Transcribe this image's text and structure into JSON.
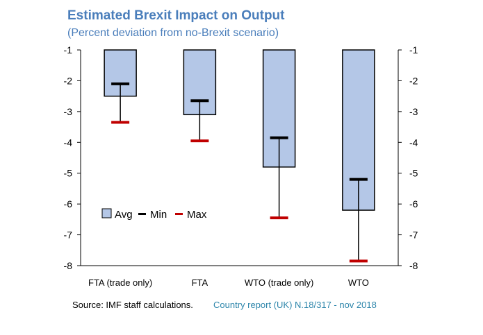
{
  "chart_data": {
    "type": "bar",
    "title": "Estimated Brexit Impact on Output",
    "subtitle": "(Percent deviation from no-Brexit scenario)",
    "categories": [
      "FTA (trade only)",
      "FTA",
      "WTO (trade only)",
      "WTO"
    ],
    "series": [
      {
        "name": "Avg",
        "kind": "bar",
        "values": [
          -2.5,
          -3.1,
          -4.8,
          -6.2
        ]
      },
      {
        "name": "Min",
        "kind": "marker",
        "values": [
          -2.1,
          -2.65,
          -3.85,
          -5.2
        ]
      },
      {
        "name": "Max",
        "kind": "marker",
        "values": [
          -3.35,
          -3.95,
          -6.45,
          -7.85
        ]
      }
    ],
    "ylim": [
      -8,
      -1
    ],
    "yticks": [
      -1,
      -2,
      -3,
      -4,
      -5,
      -6,
      -7,
      -8
    ],
    "ytick_labels": [
      "-1",
      "-2",
      "-3",
      "-4",
      "-5",
      "-6",
      "-7",
      "-8"
    ],
    "xlabel": "",
    "ylabel": "",
    "legend": {
      "position": "lower-left",
      "items": [
        "Avg",
        "Min",
        "Max"
      ]
    },
    "grid": false
  },
  "colors": {
    "bar_fill": "#b4c7e7",
    "bar_stroke": "#000000",
    "min_marker": "#000000",
    "max_marker": "#c00000",
    "title": "#4a7ebb",
    "note": "#2e86ab"
  },
  "footer": {
    "source": "Source: IMF staff calculations.",
    "note": "Country report (UK) N.18/317 - nov 2018"
  }
}
